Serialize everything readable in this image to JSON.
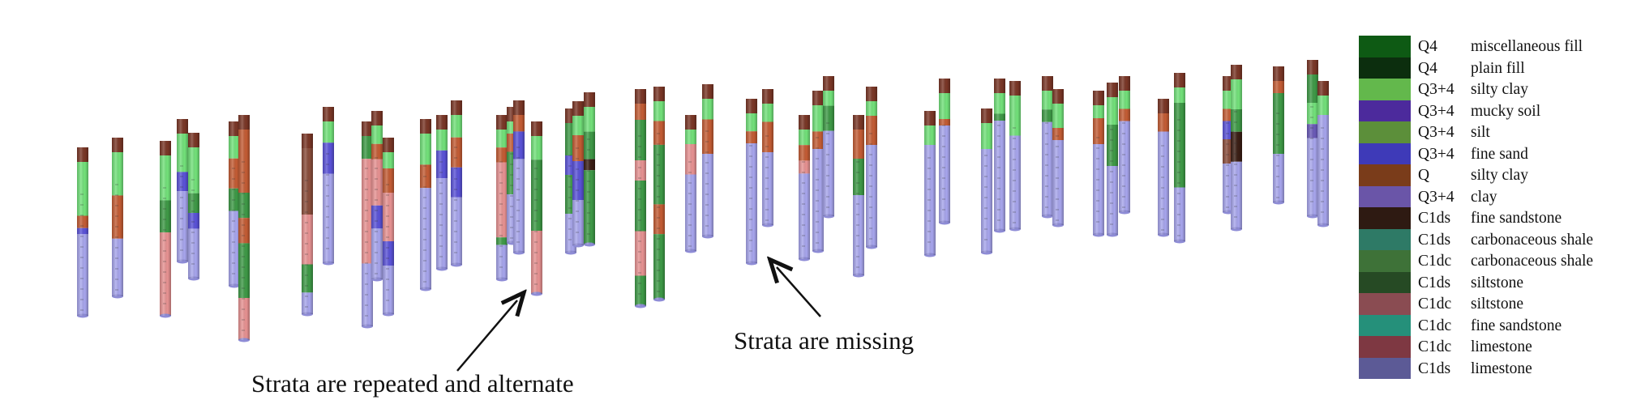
{
  "legend": [
    {
      "code": "Q4",
      "name": "miscellaneous fill",
      "color": "#0e5a14"
    },
    {
      "code": "Q4",
      "name": "plain fill",
      "color": "#0c2e0e"
    },
    {
      "code": "Q3+4",
      "name": "silty clay",
      "color": "#63b84c"
    },
    {
      "code": "Q3+4",
      "name": "mucky soil",
      "color": "#4c2a9c"
    },
    {
      "code": "Q3+4",
      "name": "silt",
      "color": "#5c8f3a"
    },
    {
      "code": "Q3+4",
      "name": "fine sand",
      "color": "#3e3ab8"
    },
    {
      "code": "Q",
      "name": "silty clay",
      "color": "#7a3c1a"
    },
    {
      "code": "Q3+4",
      "name": "clay",
      "color": "#6a55a8"
    },
    {
      "code": "C1ds",
      "name": "fine sandstone",
      "color": "#2e1a12"
    },
    {
      "code": "C1ds",
      "name": "carbonaceous shale",
      "color": "#2e7a66"
    },
    {
      "code": "C1dc",
      "name": "carbonaceous shale",
      "color": "#3e7238"
    },
    {
      "code": "C1ds",
      "name": "siltstone",
      "color": "#264a24"
    },
    {
      "code": "C1dc",
      "name": "siltstone",
      "color": "#8a4c52"
    },
    {
      "code": "C1dc",
      "name": "fine sandstone",
      "color": "#25907a"
    },
    {
      "code": "C1dc",
      "name": "limestone",
      "color": "#7e3842"
    },
    {
      "code": "C1ds",
      "name": "limestone",
      "color": "#5c5a96"
    }
  ],
  "annotations": {
    "repeated": "Strata are repeated and alternate",
    "missing": "Strata are missing"
  }
}
